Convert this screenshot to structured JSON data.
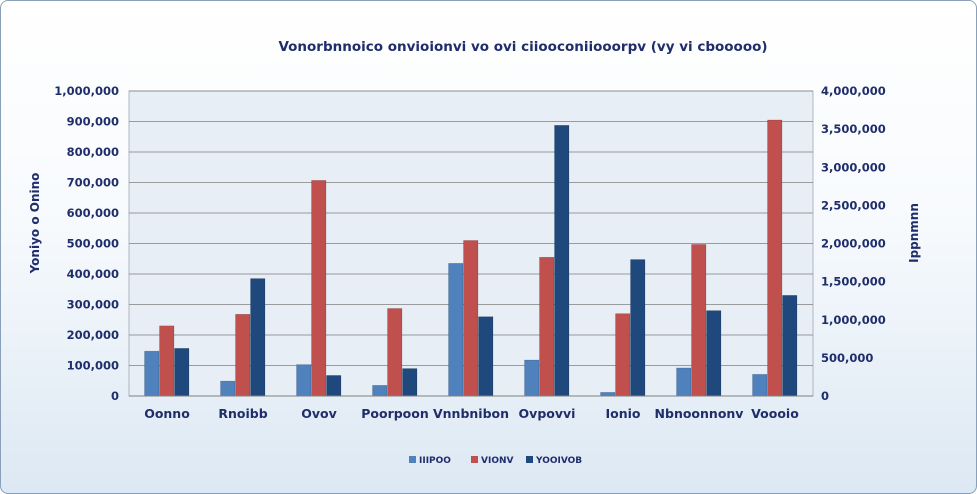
{
  "chart_data": {
    "type": "bar",
    "title": "Vonorbnnoico onvioionvi vo ovi ciiooconiiooorpv  (vy vi cbooooo)",
    "ylabel": "Yoniyo o Onino",
    "y2label": "Ippnmnn",
    "categories": [
      "Oonno",
      "Rnoibb",
      "Ovov",
      "Poorpoon",
      "Vnnbnibon",
      "Ovpovvi",
      "Ionio",
      "Nbnoonnonv",
      "Voooio"
    ],
    "ylim": [
      0,
      1000000
    ],
    "yticks": [
      "0",
      "100,000",
      "200,000",
      "300,000",
      "400,000",
      "500,000",
      "600,000",
      "700,000",
      "800,000",
      "900,000",
      "1,000,000"
    ],
    "y2lim": [
      0,
      4000000
    ],
    "y2ticks": [
      "0",
      "500,000",
      "1,000,000",
      "1,500,000",
      "2,000,000",
      "2,500,000",
      "3,000,000",
      "3,500,000",
      "4,000,000"
    ],
    "grid": true,
    "legend_position": "bottom",
    "series": [
      {
        "name": "IIIPOO",
        "axis": "left",
        "color": "#4f81bd",
        "values": [
          147000,
          49000,
          103000,
          35000,
          435000,
          118000,
          12000,
          92000,
          71000
        ]
      },
      {
        "name": "VIONV",
        "axis": "left",
        "color": "#c0504d",
        "values": [
          230000,
          268000,
          707000,
          287000,
          510000,
          455000,
          270000,
          497000,
          905000
        ]
      },
      {
        "name": "YOOIVOB",
        "axis": "right",
        "color": "#1f497d",
        "values": [
          625000,
          1540000,
          270000,
          360000,
          1040000,
          3550000,
          1790000,
          1120000,
          1320000
        ]
      }
    ]
  },
  "colors": {
    "plot_background": "#e8eef6",
    "gridline": "#7f7f7f",
    "text": "#1f2d6b"
  }
}
